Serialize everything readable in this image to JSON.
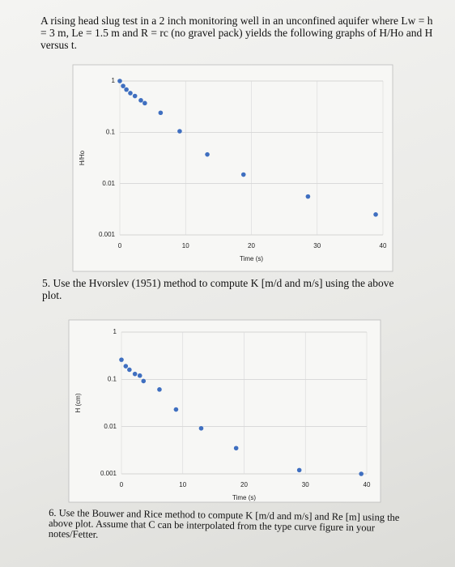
{
  "document": {
    "intro": "A rising head slug test in a 2 inch monitoring well in an unconfined aquifer where Lw = h = 3 m, Le = 1.5 m and R = rc (no gravel pack) yields the following graphs of H/Ho and H versus t.",
    "question_5": "5. Use the Hvorslev (1951) method to compute K [m/d and m/s] using the above plot.",
    "question_6": "6. Use the Bouwer and Rice method to compute K [m/d and m/s] and Re [m] using the above plot. Assume that C can be interpolated from the type curve figure in your notes/Fetter."
  },
  "chart_data": [
    {
      "type": "scatter",
      "x_label": "Time (s)",
      "y_label": "H/Ho",
      "color": "#3f6fc0",
      "x": [
        0,
        0.5,
        1,
        1.6,
        2.3,
        3.2,
        3.8,
        6.2,
        9.1,
        13.3,
        18.8,
        28.6,
        38.9
      ],
      "values": [
        1,
        0.8,
        0.68,
        0.58,
        0.51,
        0.42,
        0.37,
        0.24,
        0.105,
        0.037,
        0.015,
        0.0056,
        0.0025
      ],
      "xlim": [
        0,
        40
      ],
      "xticks": [
        0,
        10,
        20,
        30,
        40
      ],
      "ylim": [
        0.001,
        1
      ],
      "yticks": [
        0.001,
        0.01,
        0.1,
        1
      ],
      "log_y": true,
      "grid": true
    },
    {
      "type": "scatter",
      "x_label": "Time (s)",
      "y_label": "H (cm)",
      "color": "#3f6fc0",
      "x": [
        0,
        0.7,
        1.3,
        2.2,
        3,
        3.6,
        6.2,
        8.9,
        13,
        18.7,
        29,
        39.1
      ],
      "values": [
        0.26,
        0.19,
        0.16,
        0.13,
        0.12,
        0.092,
        0.061,
        0.023,
        0.0092,
        0.0035,
        0.0012,
        0.001
      ],
      "xlim": [
        0,
        40
      ],
      "xticks": [
        0,
        10,
        20,
        30,
        40
      ],
      "ylim": [
        0.001,
        1
      ],
      "yticks": [
        0.001,
        0.01,
        0.1,
        1
      ],
      "log_y": true,
      "grid": true
    }
  ]
}
